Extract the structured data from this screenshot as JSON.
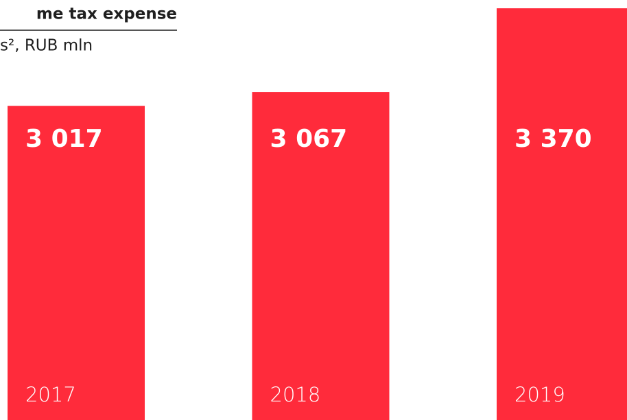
{
  "chart_data": {
    "type": "bar",
    "title": "me tax expense",
    "subtitle": "s², RUB mln",
    "categories": [
      "2017",
      "2018",
      "2019"
    ],
    "values": [
      3017,
      3067,
      3370
    ],
    "value_labels": [
      "3 017",
      "3 067",
      "3 370"
    ],
    "color": "#ff2b3b",
    "ylim": [
      1880,
      3400
    ]
  }
}
